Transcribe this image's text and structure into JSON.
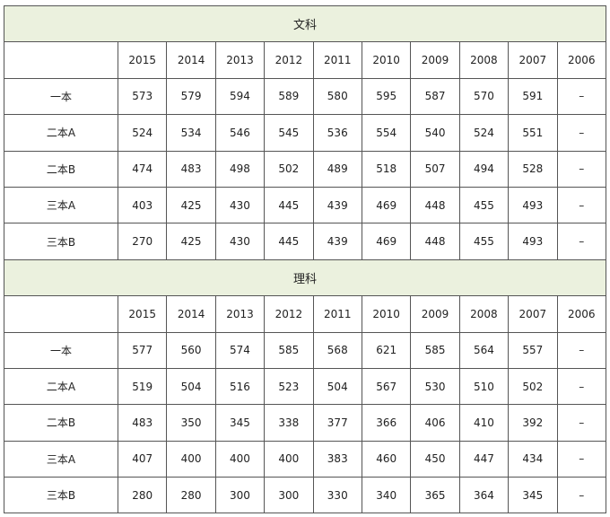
{
  "sections": [
    {
      "title": "文科",
      "header": [
        "2015",
        "2014",
        "2013",
        "2012",
        "2011",
        "2010",
        "2009",
        "2008",
        "2007",
        "2006"
      ],
      "rows": [
        [
          "一本",
          "573",
          "579",
          "594",
          "589",
          "580",
          "595",
          "587",
          "570",
          "591",
          "–"
        ],
        [
          "二本A",
          "524",
          "534",
          "546",
          "545",
          "536",
          "554",
          "540",
          "524",
          "551",
          "–"
        ],
        [
          "二本B",
          "474",
          "483",
          "498",
          "502",
          "489",
          "518",
          "507",
          "494",
          "528",
          "–"
        ],
        [
          "三本A",
          "403",
          "425",
          "430",
          "445",
          "439",
          "469",
          "448",
          "455",
          "493",
          "–"
        ],
        [
          "三本B",
          "270",
          "425",
          "430",
          "445",
          "439",
          "469",
          "448",
          "455",
          "493",
          "–"
        ]
      ]
    },
    {
      "title": "理科",
      "header": [
        "2015",
        "2014",
        "2013",
        "2012",
        "2011",
        "2010",
        "2009",
        "2008",
        "2007",
        "2006"
      ],
      "rows": [
        [
          "一本",
          "577",
          "560",
          "574",
          "585",
          "568",
          "621",
          "585",
          "564",
          "557",
          "–"
        ],
        [
          "二本A",
          "519",
          "504",
          "516",
          "523",
          "504",
          "567",
          "530",
          "510",
          "502",
          "–"
        ],
        [
          "二本B",
          "483",
          "350",
          "345",
          "338",
          "377",
          "366",
          "406",
          "410",
          "392",
          "–"
        ],
        [
          "三本A",
          "407",
          "400",
          "400",
          "400",
          "383",
          "460",
          "450",
          "447",
          "434",
          "–"
        ],
        [
          "三本B",
          "280",
          "280",
          "300",
          "300",
          "330",
          "340",
          "365",
          "364",
          "345",
          "–"
        ]
      ]
    }
  ]
}
